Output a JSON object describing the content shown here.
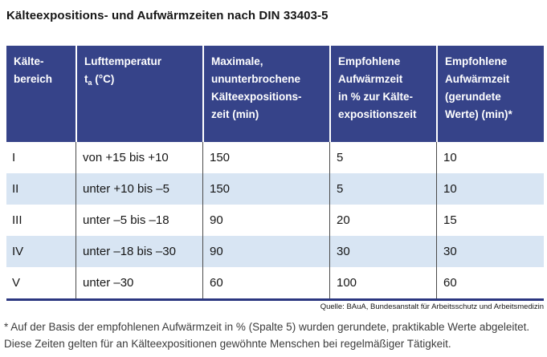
{
  "title": "Kälteexpositions- und Aufwärmzeiten nach DIN 33403-5",
  "colors": {
    "header_bg": "#364389",
    "row_alt": "#d8e5f3",
    "border_navy": "#2b3780"
  },
  "header_display": [
    {
      "lines": [
        "Kälte-",
        "bereich"
      ]
    },
    {
      "lines": [
        "Lufttemperatur"
      ],
      "symbol": "t",
      "subscript": "a",
      "unit": " (°C)"
    },
    {
      "lines": [
        "Maximale,",
        "ununterbrochene",
        "Kälteexpositions-",
        "zeit (min)"
      ]
    },
    {
      "lines": [
        "Empfohlene",
        "Aufwärmzeit",
        "in % zur Kälte-",
        "expositionszeit"
      ]
    },
    {
      "lines": [
        "Empfohlene",
        "Aufwärmzeit",
        "(gerundete",
        "Werte) (min)*"
      ]
    }
  ],
  "chart_data": {
    "type": "table",
    "title": "Kälteexpositions- und Aufwärmzeiten nach DIN 33403-5",
    "columns": [
      "Kältebereich",
      "Lufttemperatur ta (°C)",
      "Maximale, ununterbrochene Kälteexpositionszeit (min)",
      "Empfohlene Aufwärmzeit in % zur Kälteexpositionszeit",
      "Empfohlene Aufwärmzeit (gerundete Werte) (min)*"
    ],
    "rows": [
      [
        "I",
        "von +15 bis +10",
        150,
        5,
        10
      ],
      [
        "II",
        "unter +10 bis –5",
        150,
        5,
        10
      ],
      [
        "III",
        "unter –5 bis –18",
        90,
        20,
        15
      ],
      [
        "IV",
        "unter –18 bis –30",
        90,
        30,
        30
      ],
      [
        "V",
        "unter –30",
        60,
        100,
        60
      ]
    ],
    "source": "Quelle: BAuA, Bundesanstalt für Arbeitsschutz und Arbeitsmedizin"
  },
  "source": "Quelle: BAuA, Bundesanstalt für Arbeitsschutz und Arbeitsmedizin",
  "footnotes": [
    "* Auf der Basis der empfohlenen Aufwärmzeit in % (Spalte 5) wurden gerundete, praktikable Werte abgeleitet.",
    "Diese Zeiten gelten für an Kälteexpositionen gewöhnte Menschen bei regelmäßiger Tätigkeit."
  ]
}
